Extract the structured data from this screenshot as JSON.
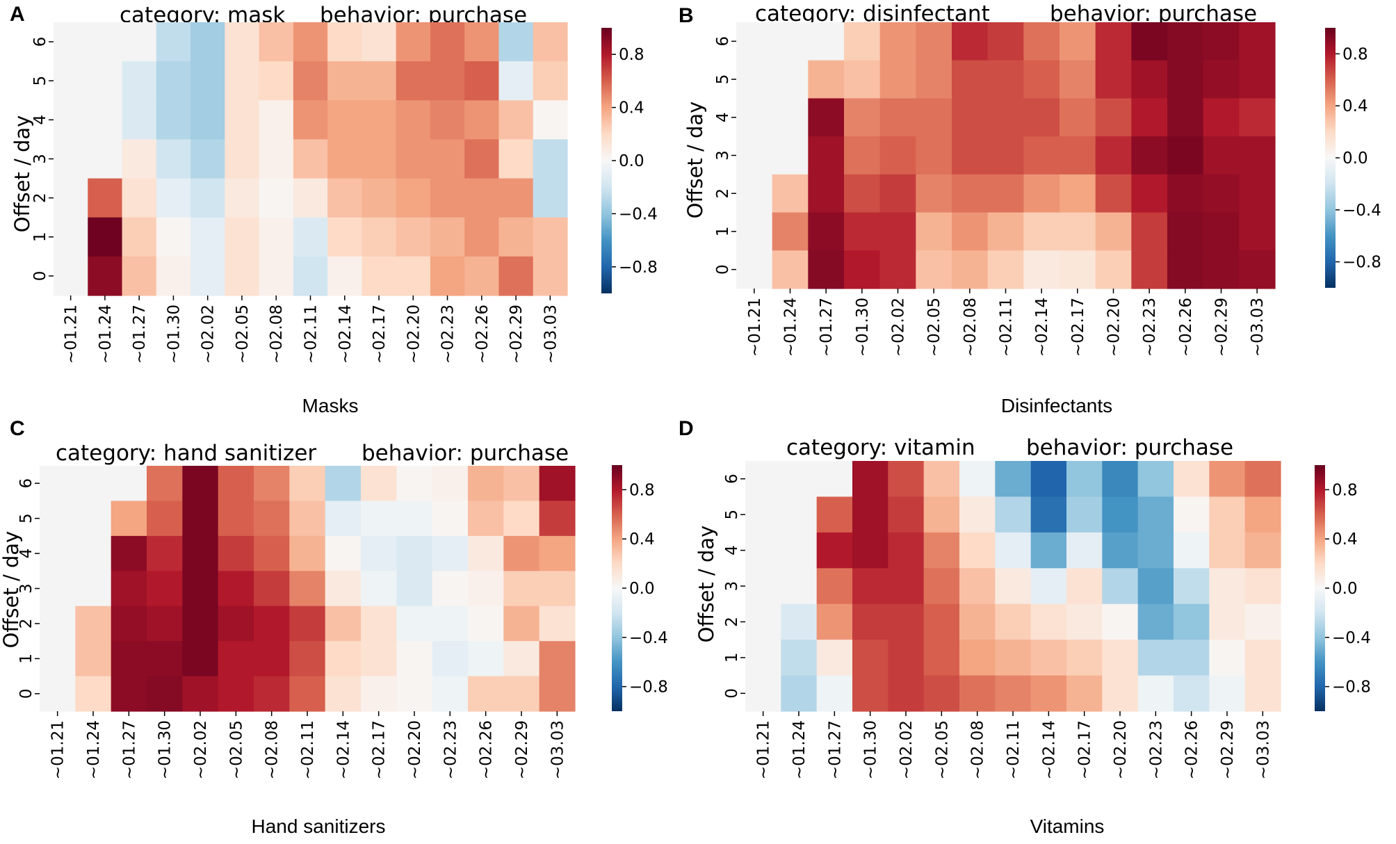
{
  "figure": {
    "colormap": {
      "name": "RdBu_r",
      "vmin": -1,
      "vmax": 1,
      "stops": [
        "#053061",
        "#2166ac",
        "#4393c3",
        "#92c5de",
        "#d1e5f0",
        "#f7f7f7",
        "#fddbc7",
        "#f4a582",
        "#d6604d",
        "#b2182b",
        "#67001f"
      ]
    },
    "missing_color": "#f4f4f4"
  },
  "chart_data": [
    {
      "type": "heatmap",
      "panel_label": "A",
      "caption": "Masks",
      "title_left": "category: mask",
      "title_right": "behavior: purchase",
      "ylabel": "Offset / day",
      "x_categories": [
        "~01.21",
        "~01.24",
        "~01.27",
        "~01.30",
        "~02.02",
        "~02.05",
        "~02.08",
        "~02.11",
        "~02.14",
        "~02.17",
        "~02.20",
        "~02.23",
        "~02.26",
        "~02.29",
        "~03.03"
      ],
      "y_categories": [
        "6",
        "5",
        "4",
        "3",
        "2",
        "1",
        "0"
      ],
      "values": [
        [
          null,
          null,
          null,
          -0.25,
          -0.35,
          0.15,
          0.3,
          0.45,
          0.2,
          0.15,
          0.45,
          0.55,
          0.45,
          -0.3,
          0.3
        ],
        [
          null,
          null,
          -0.15,
          -0.3,
          -0.35,
          0.15,
          0.2,
          0.5,
          0.35,
          0.35,
          0.55,
          0.55,
          0.6,
          -0.1,
          0.25
        ],
        [
          null,
          null,
          -0.15,
          -0.3,
          -0.35,
          0.15,
          0.05,
          0.45,
          0.4,
          0.4,
          0.45,
          0.5,
          0.45,
          0.3,
          0.02
        ],
        [
          null,
          null,
          0.1,
          -0.2,
          -0.3,
          0.15,
          0.05,
          0.3,
          0.4,
          0.4,
          0.45,
          0.45,
          0.55,
          0.2,
          -0.25
        ],
        [
          null,
          0.6,
          0.15,
          -0.1,
          -0.2,
          0.1,
          0.02,
          0.1,
          0.3,
          0.35,
          0.4,
          0.45,
          0.45,
          0.45,
          -0.25
        ],
        [
          null,
          0.98,
          0.25,
          0.02,
          -0.1,
          0.15,
          0.05,
          -0.15,
          0.2,
          0.25,
          0.3,
          0.35,
          0.45,
          0.35,
          0.3
        ],
        [
          null,
          0.9,
          0.3,
          0.05,
          -0.1,
          0.15,
          0.05,
          -0.2,
          0.05,
          0.2,
          0.2,
          0.4,
          0.35,
          0.55,
          0.3
        ]
      ],
      "colorbar_ticks": [
        "0.8",
        "0.4",
        "0.0",
        "−0.4",
        "−0.8"
      ]
    },
    {
      "type": "heatmap",
      "panel_label": "B",
      "caption": "Disinfectants",
      "title_left": "category: disinfectant",
      "title_right": "behavior: purchase",
      "ylabel": "Offset / day",
      "x_categories": [
        "~01.21",
        "~01.24",
        "~01.27",
        "~01.30",
        "~02.02",
        "~02.05",
        "~02.08",
        "~02.11",
        "~02.14",
        "~02.17",
        "~02.20",
        "~02.23",
        "~02.26",
        "~02.29",
        "~03.03"
      ],
      "y_categories": [
        "6",
        "5",
        "4",
        "3",
        "2",
        "1",
        "0"
      ],
      "values": [
        [
          null,
          null,
          null,
          0.25,
          0.45,
          0.5,
          0.75,
          0.7,
          0.55,
          0.45,
          0.75,
          0.95,
          0.92,
          0.9,
          0.85
        ],
        [
          null,
          null,
          0.35,
          0.3,
          0.45,
          0.5,
          0.65,
          0.65,
          0.6,
          0.5,
          0.75,
          0.85,
          0.92,
          0.88,
          0.85
        ],
        [
          null,
          null,
          0.9,
          0.5,
          0.55,
          0.55,
          0.65,
          0.65,
          0.65,
          0.55,
          0.65,
          0.8,
          0.92,
          0.8,
          0.75
        ],
        [
          null,
          null,
          0.85,
          0.55,
          0.6,
          0.55,
          0.65,
          0.65,
          0.6,
          0.6,
          0.75,
          0.9,
          0.95,
          0.85,
          0.85
        ],
        [
          null,
          0.3,
          0.85,
          0.65,
          0.7,
          0.5,
          0.55,
          0.55,
          0.45,
          0.4,
          0.65,
          0.8,
          0.9,
          0.88,
          0.85
        ],
        [
          null,
          0.5,
          0.9,
          0.75,
          0.75,
          0.35,
          0.45,
          0.35,
          0.25,
          0.25,
          0.35,
          0.7,
          0.92,
          0.9,
          0.85
        ],
        [
          null,
          0.3,
          0.92,
          0.8,
          0.75,
          0.3,
          0.35,
          0.25,
          0.1,
          0.12,
          0.25,
          0.7,
          0.92,
          0.9,
          0.88
        ]
      ],
      "colorbar_ticks": [
        "0.8",
        "0.4",
        "0.0",
        "−0.4",
        "−0.8"
      ]
    },
    {
      "type": "heatmap",
      "panel_label": "C",
      "caption": "Hand sanitizers",
      "title_left": "category: hand sanitizer",
      "title_right": "behavior: purchase",
      "ylabel": "Offset / day",
      "x_categories": [
        "~01.21",
        "~01.24",
        "~01.27",
        "~01.30",
        "~02.02",
        "~02.05",
        "~02.08",
        "~02.11",
        "~02.14",
        "~02.17",
        "~02.20",
        "~02.23",
        "~02.26",
        "~02.29",
        "~03.03"
      ],
      "y_categories": [
        "6",
        "5",
        "4",
        "3",
        "2",
        "1",
        "0"
      ],
      "values": [
        [
          null,
          null,
          null,
          0.55,
          0.95,
          0.6,
          0.5,
          0.25,
          -0.3,
          0.15,
          0.02,
          0.05,
          0.35,
          0.3,
          0.85
        ],
        [
          null,
          null,
          0.4,
          0.6,
          0.95,
          0.6,
          0.55,
          0.3,
          -0.1,
          -0.05,
          -0.05,
          0.02,
          0.3,
          0.2,
          0.7
        ],
        [
          null,
          null,
          0.9,
          0.75,
          0.95,
          0.7,
          0.6,
          0.35,
          0.02,
          -0.1,
          -0.15,
          -0.1,
          0.1,
          0.45,
          0.4
        ],
        [
          null,
          null,
          0.85,
          0.8,
          0.95,
          0.8,
          0.7,
          0.5,
          0.1,
          -0.05,
          -0.15,
          0.02,
          0.05,
          0.25,
          0.25
        ],
        [
          null,
          0.3,
          0.88,
          0.85,
          0.95,
          0.85,
          0.8,
          0.7,
          0.3,
          0.15,
          -0.05,
          -0.05,
          0.02,
          0.35,
          0.15
        ],
        [
          null,
          0.3,
          0.9,
          0.9,
          0.95,
          0.8,
          0.8,
          0.65,
          0.2,
          0.15,
          0.02,
          -0.1,
          -0.05,
          0.1,
          0.5
        ],
        [
          null,
          0.2,
          0.9,
          0.92,
          0.85,
          0.8,
          0.75,
          0.6,
          0.15,
          0.05,
          0.02,
          -0.05,
          0.25,
          0.25,
          0.5
        ]
      ],
      "colorbar_ticks": [
        "0.8",
        "0.4",
        "0.0",
        "−0.4",
        "−0.8"
      ]
    },
    {
      "type": "heatmap",
      "panel_label": "D",
      "caption": "Vitamins",
      "title_left": "category: vitamin",
      "title_right": "behavior: purchase",
      "ylabel": "Offset / day",
      "x_categories": [
        "~01.21",
        "~01.24",
        "~01.27",
        "~01.30",
        "~02.02",
        "~02.05",
        "~02.08",
        "~02.11",
        "~02.14",
        "~02.17",
        "~02.20",
        "~02.23",
        "~02.26",
        "~02.29",
        "~03.03"
      ],
      "y_categories": [
        "6",
        "5",
        "4",
        "3",
        "2",
        "1",
        "0"
      ],
      "values": [
        [
          null,
          null,
          null,
          0.85,
          0.65,
          0.3,
          -0.05,
          -0.5,
          -0.8,
          -0.4,
          -0.65,
          -0.4,
          0.15,
          0.45,
          0.55
        ],
        [
          null,
          null,
          0.6,
          0.85,
          0.7,
          0.35,
          0.1,
          -0.3,
          -0.75,
          -0.35,
          -0.6,
          -0.5,
          0.02,
          0.25,
          0.4
        ],
        [
          null,
          null,
          0.8,
          0.85,
          0.75,
          0.5,
          0.2,
          -0.1,
          -0.5,
          -0.1,
          -0.55,
          -0.5,
          -0.05,
          0.25,
          0.35
        ],
        [
          null,
          null,
          0.55,
          0.75,
          0.75,
          0.55,
          0.3,
          0.1,
          -0.1,
          0.15,
          -0.3,
          -0.55,
          -0.25,
          0.1,
          0.15
        ],
        [
          null,
          -0.15,
          0.45,
          0.7,
          0.7,
          0.6,
          0.35,
          0.25,
          0.15,
          0.1,
          0.02,
          -0.5,
          -0.4,
          0.1,
          0.05
        ],
        [
          null,
          -0.25,
          0.1,
          0.65,
          0.7,
          0.6,
          0.4,
          0.35,
          0.3,
          0.25,
          0.15,
          -0.3,
          -0.3,
          0.02,
          0.15
        ],
        [
          null,
          -0.3,
          -0.05,
          0.65,
          0.7,
          0.65,
          0.55,
          0.5,
          0.45,
          0.35,
          0.15,
          -0.05,
          -0.2,
          -0.05,
          0.15
        ]
      ],
      "colorbar_ticks": [
        "0.8",
        "0.4",
        "0.0",
        "−0.4",
        "−0.8"
      ]
    }
  ]
}
